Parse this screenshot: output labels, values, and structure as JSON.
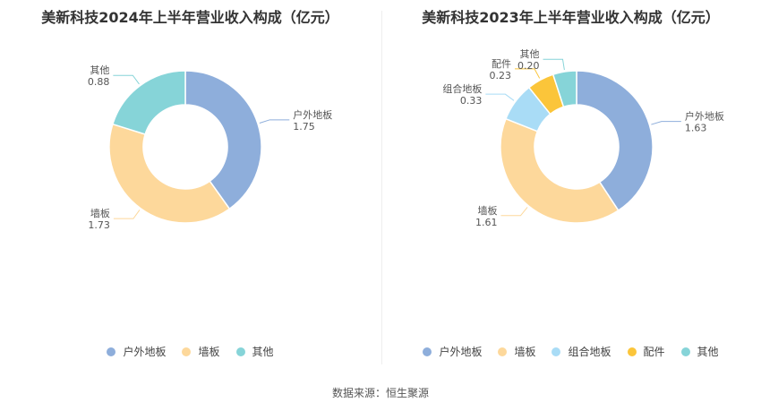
{
  "chart_data": [
    {
      "type": "pie",
      "title": "美新科技2024年上半年营业收入构成（亿元）",
      "categories": [
        "户外地板",
        "墙板",
        "其他"
      ],
      "values": [
        1.75,
        1.73,
        0.88
      ],
      "value_labels": [
        "1.75",
        "1.73",
        "0.88"
      ],
      "colors": [
        "#8eaedb",
        "#fdd89b",
        "#86d4d8"
      ],
      "legend": "bottom"
    },
    {
      "type": "pie",
      "title": "美新科技2023年上半年营业收入构成（亿元）",
      "categories": [
        "户外地板",
        "墙板",
        "组合地板",
        "配件",
        "其他"
      ],
      "values": [
        1.63,
        1.61,
        0.33,
        0.23,
        0.2
      ],
      "value_labels": [
        "1.63",
        "1.61",
        "0.33",
        "0.23",
        "0.20"
      ],
      "colors": [
        "#8eaedb",
        "#fdd89b",
        "#a9dcf6",
        "#fbc53a",
        "#86d4d8"
      ],
      "legend": "bottom"
    }
  ],
  "source": "数据来源：恒生聚源"
}
